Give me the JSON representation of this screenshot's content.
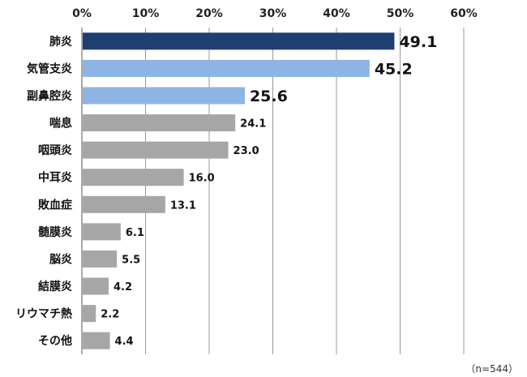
{
  "chart_data": {
    "type": "bar",
    "orientation": "horizontal",
    "title": "",
    "xlabel": "",
    "ylabel": "",
    "xlim": [
      0,
      60
    ],
    "x_ticks": [
      0,
      10,
      20,
      30,
      40,
      50,
      60
    ],
    "x_tick_labels": [
      "0%",
      "10%",
      "20%",
      "30%",
      "40%",
      "50%",
      "60%"
    ],
    "x_axis_position": "top",
    "grid": true,
    "legend": "none",
    "categories": [
      "肺炎",
      "気管支炎",
      "副鼻腔炎",
      "喘息",
      "咽頭炎",
      "中耳炎",
      "敗血症",
      "髄膜炎",
      "脳炎",
      "結膜炎",
      "リウマチ熱",
      "その他"
    ],
    "values": [
      49.1,
      45.2,
      25.6,
      24.1,
      23.0,
      16.0,
      13.1,
      6.1,
      5.5,
      4.2,
      2.2,
      4.4
    ],
    "value_labels": [
      "49.1",
      "45.2",
      "25.6",
      "24.1",
      "23.0",
      "16.0",
      "13.1",
      "6.1",
      "5.5",
      "4.2",
      "2.2",
      "4.4"
    ],
    "bar_colors": [
      "#1f3f73",
      "#8eb4e3",
      "#8eb4e3",
      "#a6a6a6",
      "#a6a6a6",
      "#a6a6a6",
      "#a6a6a6",
      "#a6a6a6",
      "#a6a6a6",
      "#a6a6a6",
      "#a6a6a6",
      "#a6a6a6"
    ],
    "highlighted_count": 3,
    "note": "（n=544）"
  }
}
